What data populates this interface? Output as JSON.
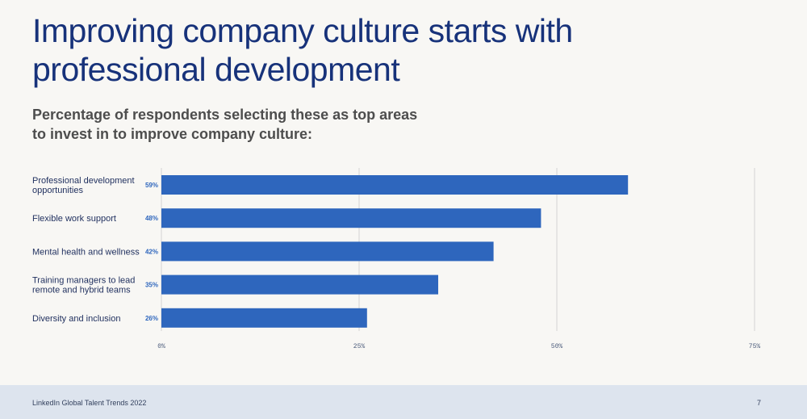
{
  "header": {
    "title": "Improving company culture starts with professional development",
    "subtitle": "Percentage of respondents selecting these as top areas to invest in to improve company culture:"
  },
  "colors": {
    "bar": "#2e66bd",
    "value_label": "#2e66bd",
    "gridline": "#d3d3d3",
    "title": "#17327a"
  },
  "chart_data": {
    "type": "bar",
    "orientation": "horizontal",
    "categories": [
      [
        "Professional development",
        "opportunities"
      ],
      [
        "Flexible work support"
      ],
      [
        "Mental health and wellness"
      ],
      [
        "Training managers to lead",
        "remote and hybrid teams"
      ],
      [
        "Diversity and inclusion"
      ]
    ],
    "values": [
      59,
      48,
      42,
      35,
      26
    ],
    "value_labels": [
      "59%",
      "48%",
      "42%",
      "35%",
      "26%"
    ],
    "xlim": [
      0,
      75
    ],
    "ticks": [
      0,
      25,
      50,
      75
    ],
    "tick_labels": [
      "0%",
      "25%",
      "50%",
      "75%"
    ],
    "grid": true,
    "title": "",
    "xlabel": "",
    "ylabel": ""
  },
  "footer": {
    "source": "LinkedIn Global Talent Trends 2022",
    "page_number": "7"
  }
}
